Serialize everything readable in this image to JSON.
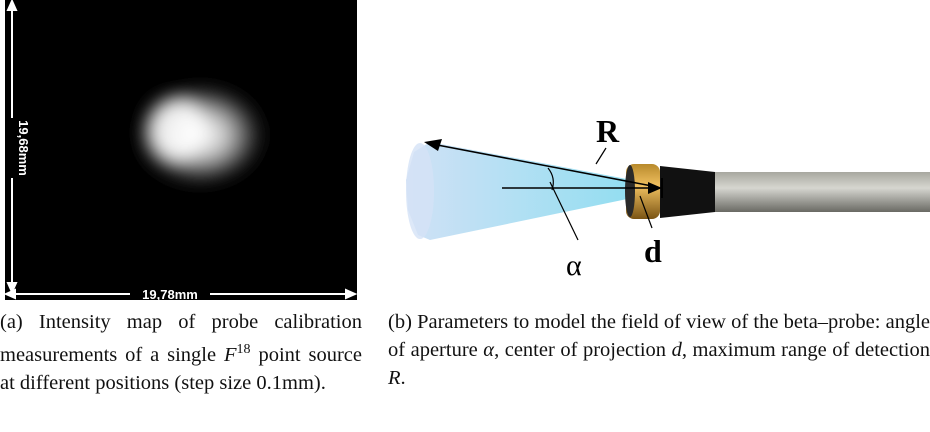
{
  "figure_a": {
    "height_label": "19,68mm",
    "width_label": "19,78mm",
    "caption": {
      "parts": [
        "(a) Intensity map of probe calibration measurements of a single ",
        "F",
        "18",
        " point source at different positions (step size 0.1mm)."
      ]
    }
  },
  "figure_b": {
    "range_label": "R",
    "angle_label": "α",
    "center_label": "d",
    "caption": {
      "parts": [
        "(b) Parameters to model the field of view of the beta–probe: angle of aperture ",
        "α",
        ", center of projection ",
        "d",
        ", maximum range of detection ",
        "R",
        "."
      ]
    }
  }
}
